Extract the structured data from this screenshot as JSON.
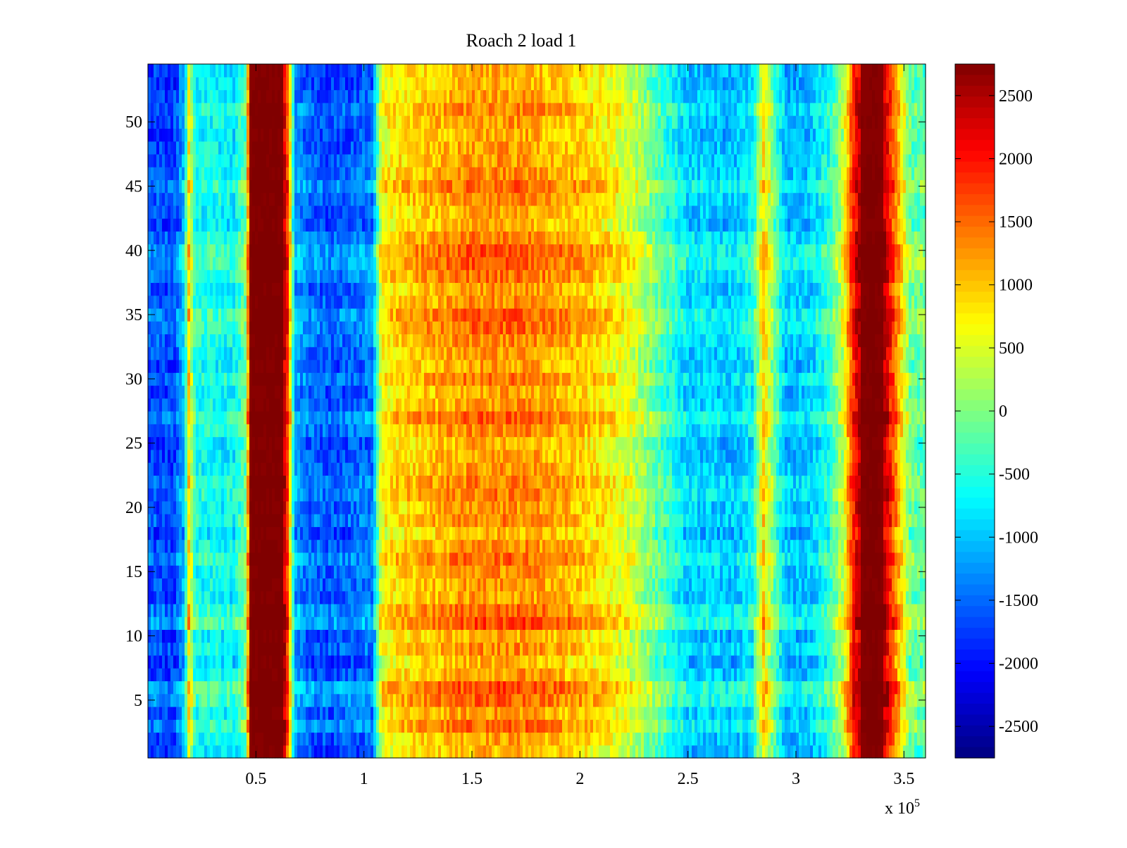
{
  "chart_data": {
    "type": "heatmap",
    "title": "Roach 2 load 1",
    "xlabel": "",
    "ylabel": "",
    "x_multiplier_label": "x 10",
    "x_multiplier_exponent": "5",
    "xlim": [
      0,
      360000
    ],
    "ylim": [
      0.5,
      54.5
    ],
    "x_ticks": [
      {
        "value": 50000,
        "label": "0.5"
      },
      {
        "value": 100000,
        "label": "1"
      },
      {
        "value": 150000,
        "label": "1.5"
      },
      {
        "value": 200000,
        "label": "2"
      },
      {
        "value": 250000,
        "label": "2.5"
      },
      {
        "value": 300000,
        "label": "3"
      },
      {
        "value": 350000,
        "label": "3.5"
      }
    ],
    "y_ticks": [
      {
        "value": 5,
        "label": "5"
      },
      {
        "value": 10,
        "label": "10"
      },
      {
        "value": 15,
        "label": "15"
      },
      {
        "value": 20,
        "label": "20"
      },
      {
        "value": 25,
        "label": "25"
      },
      {
        "value": 30,
        "label": "30"
      },
      {
        "value": 35,
        "label": "35"
      },
      {
        "value": 40,
        "label": "40"
      },
      {
        "value": 45,
        "label": "45"
      },
      {
        "value": 50,
        "label": "50"
      }
    ],
    "rows": 54,
    "colormap": "jet",
    "colorbar": {
      "range": [
        -2750,
        2750
      ],
      "ticks": [
        {
          "value": 2500,
          "label": "2500"
        },
        {
          "value": 2000,
          "label": "2000"
        },
        {
          "value": 1500,
          "label": "1500"
        },
        {
          "value": 1000,
          "label": "1000"
        },
        {
          "value": 500,
          "label": "500"
        },
        {
          "value": 0,
          "label": "0"
        },
        {
          "value": -500,
          "label": "-500"
        },
        {
          "value": -1000,
          "label": "-1000"
        },
        {
          "value": -1500,
          "label": "-1500"
        },
        {
          "value": -2000,
          "label": "-2000"
        },
        {
          "value": -2500,
          "label": "-2500"
        }
      ]
    },
    "column_profile": {
      "x": [
        0,
        12000,
        17000,
        19000,
        22000,
        30000,
        40000,
        45000,
        48000,
        55000,
        62000,
        65000,
        68000,
        75000,
        85000,
        95000,
        104000,
        108000,
        112000,
        125000,
        150000,
        175000,
        200000,
        215000,
        225000,
        240000,
        250000,
        260000,
        270000,
        280000,
        285000,
        290000,
        295000,
        305000,
        315000,
        322000,
        327000,
        333000,
        337000,
        342000,
        348000,
        353000,
        360000
      ],
      "values": [
        -1700,
        -1800,
        -1100,
        800,
        -700,
        -700,
        -800,
        -200,
        2800,
        2800,
        2800,
        1500,
        -1300,
        -1600,
        -1700,
        -1600,
        -1500,
        500,
        700,
        900,
        1200,
        1200,
        900,
        600,
        300,
        -500,
        -1000,
        -1000,
        -1100,
        -800,
        800,
        -200,
        -1100,
        -1100,
        -600,
        300,
        2000,
        2700,
        2700,
        2200,
        900,
        -200,
        -300
      ]
    },
    "row_profile": {
      "y": [
        1,
        2,
        3,
        4,
        5,
        6,
        7,
        8,
        9,
        10,
        11,
        12,
        13,
        14,
        15,
        16,
        17,
        18,
        19,
        20,
        21,
        22,
        23,
        24,
        25,
        26,
        27,
        28,
        29,
        30,
        31,
        32,
        33,
        34,
        35,
        36,
        37,
        38,
        39,
        40,
        41,
        42,
        43,
        44,
        45,
        46,
        47,
        48,
        49,
        50,
        51,
        52,
        53,
        54
      ],
      "values": [
        -200,
        0,
        600,
        100,
        700,
        900,
        100,
        -200,
        200,
        -100,
        900,
        600,
        0,
        100,
        200,
        600,
        200,
        -200,
        300,
        100,
        400,
        400,
        100,
        0,
        -100,
        300,
        700,
        100,
        0,
        400,
        0,
        100,
        300,
        600,
        700,
        200,
        100,
        500,
        800,
        800,
        400,
        -100,
        0,
        200,
        600,
        200,
        100,
        0,
        -100,
        100,
        300,
        0,
        -200,
        -100
      ]
    }
  }
}
